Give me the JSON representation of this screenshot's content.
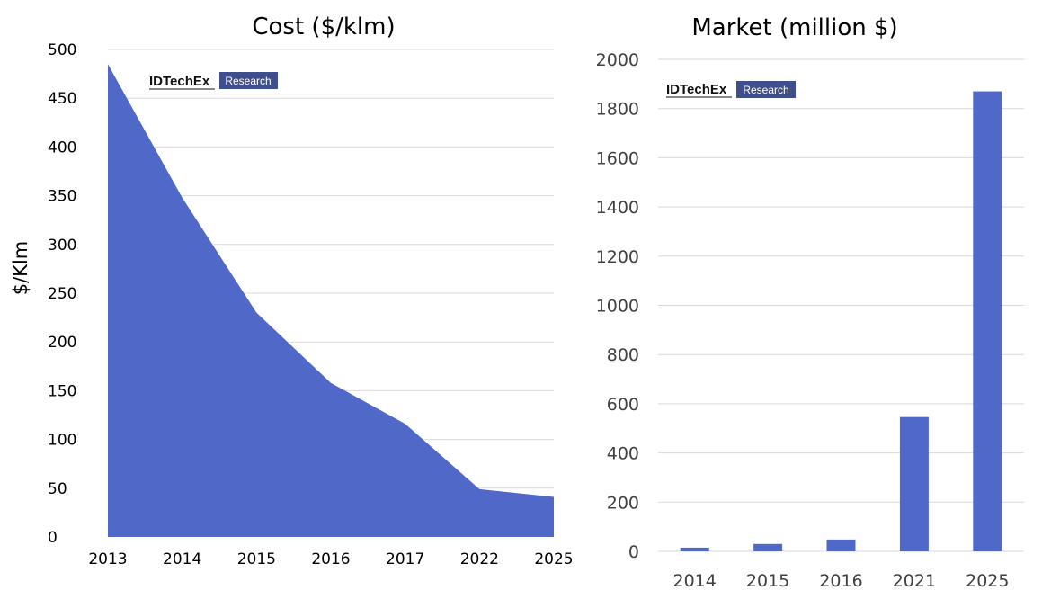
{
  "chart_data": [
    {
      "type": "area",
      "title": "Cost ($/klm)",
      "xlabel": "",
      "ylabel": "$/Klm",
      "categories": [
        "2013",
        "2014",
        "2015",
        "2016",
        "2017",
        "2022",
        "2025"
      ],
      "values": [
        485,
        348,
        230,
        158,
        116,
        49,
        41
      ],
      "ylim": [
        0,
        500
      ],
      "yticks": [
        "0",
        "50",
        "100",
        "150",
        "200",
        "250",
        "300",
        "350",
        "400",
        "450",
        "500"
      ],
      "grid": true,
      "color": "#5068C8",
      "logo": {
        "brand": "IDTechEx",
        "badge": "Research"
      }
    },
    {
      "type": "bar",
      "title": "Market (million $)",
      "xlabel": "",
      "ylabel": "",
      "categories": [
        "2014",
        "2015",
        "2016",
        "2021",
        "2025"
      ],
      "values": [
        15,
        30,
        48,
        546,
        1870
      ],
      "ylim": [
        0,
        2000
      ],
      "yticks": [
        "0",
        "200",
        "400",
        "600",
        "800",
        "1000",
        "1200",
        "1400",
        "1600",
        "1800",
        "2000"
      ],
      "grid": true,
      "color": "#5068C8",
      "logo": {
        "brand": "IDTechEx",
        "badge": "Research"
      }
    }
  ],
  "colors": {
    "series": "#5068C8",
    "badge": "#3F4E8C",
    "grid": "#D9D9D9"
  }
}
